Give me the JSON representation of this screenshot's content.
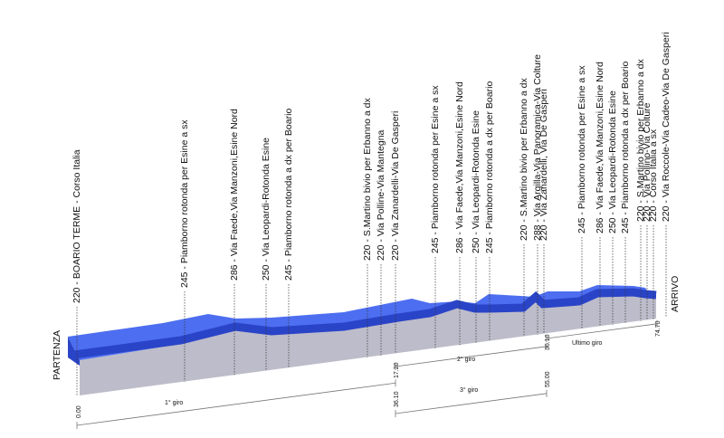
{
  "start_label": "PARTENZA",
  "finish_label": "ARRIVO",
  "waypoints": [
    "220 - BOARIO TERME - Corso Italia",
    "245 - Piamborno rotonda per Esine a sx",
    "286 - Via Faede,Via Manzoni,Esine Nord",
    "250 - Via Leopardi-Rotonda Esine",
    "245 - Piamborno rotonda a dx per Boario",
    "220 - S.Martino bivio per Erbanno a dx",
    "220 - Via Polline-Via Mantegna",
    "220 - Via Zanardelli-Via De Gasperi",
    "245 - Piamborno rotonda per Esine a sx",
    "286 - Via Faede,Via Manzoni,Esine Nord",
    "250 - Via Leopardi-Rotonda Esine",
    "245 - Piamborno rotonda a dx per Boario",
    "220 - S.Martino bivio per Erbanno a dx",
    "288 - Via Argilla-Via Panoramica-Via Colture",
    "220 - Via Zanardelli, Via De Gasperi",
    "245 - Piamborno rotonda per Esine a sx",
    "286 - Via Faede,Via Manzoni,Esine Nord",
    "250 - Via Leopardi-Rotonda Esine",
    "245 - Piamborno rotonda a dx per Boario",
    "220 - S.Martino bivio per Erbanno a dx",
    "220 - Via Pollino-Via Colture",
    "220 - Corso Italia a sx",
    "220 - Via Roccole-Via Cadeo-Via De Gasperi"
  ],
  "distance_marks": [
    "0.00",
    "17.20",
    "36.10",
    "55.00",
    "36.10",
    "74.70"
  ],
  "laps": [
    "1° giro",
    "2° giro",
    "3° giro",
    "Ultimo giro"
  ]
}
